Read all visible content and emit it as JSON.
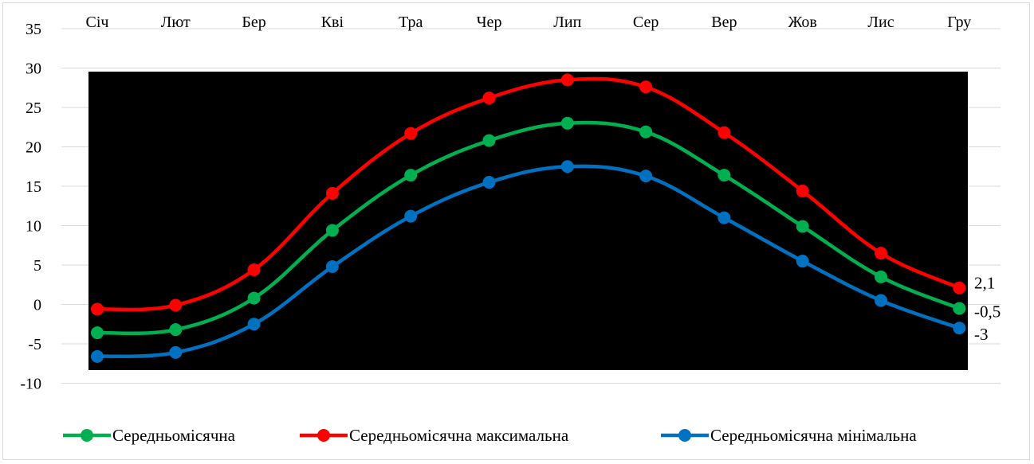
{
  "chart_data": {
    "type": "line",
    "categories": [
      "Січ",
      "Лют",
      "Бер",
      "Кві",
      "Тра",
      "Чер",
      "Лип",
      "Сер",
      "Вер",
      "Жов",
      "Лис",
      "Гру"
    ],
    "ylim": [
      -10,
      35
    ],
    "yticks": [
      "35",
      "30",
      "25",
      "20",
      "15",
      "10",
      "5",
      "0",
      "-5",
      "-10"
    ],
    "ytick_values": [
      35,
      30,
      25,
      20,
      15,
      10,
      5,
      0,
      -5,
      -10
    ],
    "grid": true,
    "smooth": true,
    "x_axis_position": "top",
    "legend_position": "bottom",
    "series": [
      {
        "name": "Середньомісячна",
        "color": "#00b050",
        "values": [
          -3.6,
          -3.2,
          0.8,
          9.4,
          16.4,
          20.8,
          23.0,
          21.9,
          16.4,
          9.9,
          3.5,
          -0.5
        ]
      },
      {
        "name": "Середньомісячна максимальна",
        "color": "#ff0000",
        "values": [
          -0.6,
          -0.1,
          4.4,
          14.1,
          21.7,
          26.2,
          28.5,
          27.6,
          21.8,
          14.4,
          6.5,
          2.1
        ]
      },
      {
        "name": "Середньомісячна мінімальна",
        "color": "#0070c0",
        "values": [
          -6.6,
          -6.1,
          -2.5,
          4.8,
          11.2,
          15.5,
          17.5,
          16.3,
          11.0,
          5.5,
          0.5,
          -3.0
        ]
      }
    ],
    "end_labels": [
      "2,1",
      "-0,5",
      "-3"
    ]
  }
}
